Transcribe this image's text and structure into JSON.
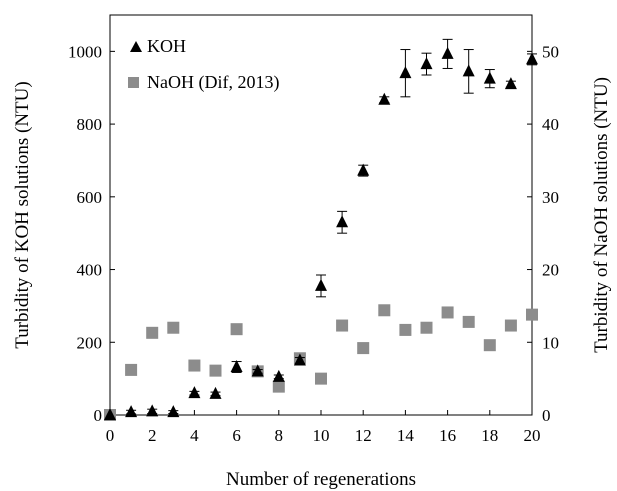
{
  "chart_data": {
    "type": "scatter",
    "xlabel": "Number of regenerations",
    "ylabel_left": "Turbidity of KOH solutions (NTU)",
    "ylabel_right": "Turbidity of NaOH solutions (NTU)",
    "xlim": [
      0,
      20
    ],
    "ylim_left": [
      0,
      1100
    ],
    "ylim_right": [
      0,
      55
    ],
    "x_ticks": [
      "0",
      "2",
      "4",
      "6",
      "8",
      "10",
      "12",
      "14",
      "16",
      "18",
      "20"
    ],
    "y_ticks_left": [
      "0",
      "200",
      "400",
      "600",
      "800",
      "1000"
    ],
    "y_ticks_right": [
      "0",
      "10",
      "20",
      "30",
      "40",
      "50"
    ],
    "grid": false,
    "legend_position": "top-left",
    "series": [
      {
        "name": "KOH",
        "axis": "left",
        "marker": "triangle",
        "color": "#000000",
        "x": [
          0,
          1,
          2,
          3,
          4,
          5,
          6,
          7,
          8,
          9,
          10,
          11,
          12,
          13,
          14,
          15,
          16,
          17,
          18,
          19,
          20
        ],
        "y": [
          0,
          8,
          10,
          8,
          60,
          58,
          132,
          120,
          105,
          150,
          355,
          530,
          672,
          867,
          940,
          965,
          993,
          945,
          925,
          910,
          978
        ],
        "error": [
          0,
          5,
          6,
          4,
          5,
          5,
          15,
          5,
          5,
          8,
          30,
          30,
          15,
          8,
          65,
          30,
          40,
          60,
          25,
          8,
          15
        ]
      },
      {
        "name": "NaOH (Dif, 2013)",
        "axis": "right",
        "marker": "square",
        "color": "#8c8c8c",
        "x": [
          0,
          1,
          2,
          3,
          4,
          5,
          6,
          7,
          8,
          9,
          10,
          11,
          12,
          13,
          14,
          15,
          16,
          17,
          18,
          19,
          20
        ],
        "y": [
          0,
          6.2,
          11.3,
          12,
          6.8,
          6.1,
          11.8,
          6,
          3.9,
          7.8,
          5,
          12.3,
          9.2,
          14.4,
          11.7,
          12,
          14.1,
          12.8,
          9.6,
          12.3,
          13.8
        ]
      }
    ]
  }
}
